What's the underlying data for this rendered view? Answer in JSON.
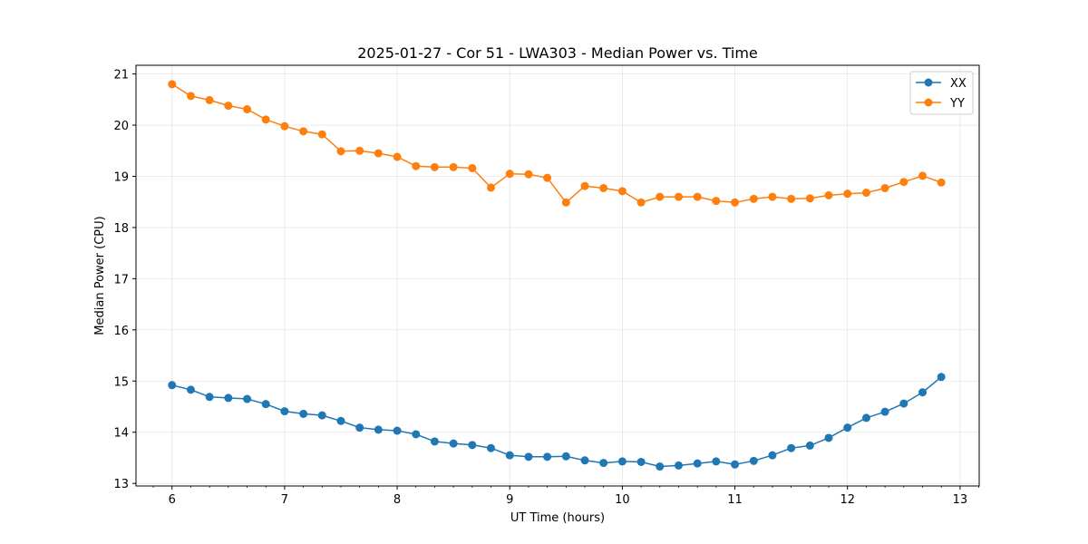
{
  "chart_data": {
    "type": "line",
    "title": "2025-01-27 - Cor 51 - LWA303 - Median Power vs. Time",
    "xlabel": "UT Time (hours)",
    "ylabel": "Median Power (CPU)",
    "xlim": [
      5.68,
      13.17
    ],
    "ylim": [
      12.95,
      21.17
    ],
    "x_ticks": [
      6,
      7,
      8,
      9,
      10,
      11,
      12,
      13
    ],
    "y_ticks": [
      13,
      14,
      15,
      16,
      17,
      18,
      19,
      20,
      21
    ],
    "x_tick_labels": [
      "6",
      "7",
      "8",
      "9",
      "10",
      "11",
      "12",
      "13"
    ],
    "y_tick_labels": [
      "13",
      "14",
      "15",
      "16",
      "17",
      "18",
      "19",
      "20",
      "21"
    ],
    "grid": true,
    "legend_position": "top-right",
    "x": [
      6.0,
      6.167,
      6.333,
      6.5,
      6.667,
      6.833,
      7.0,
      7.167,
      7.333,
      7.5,
      7.667,
      7.833,
      8.0,
      8.167,
      8.333,
      8.5,
      8.667,
      8.833,
      9.0,
      9.167,
      9.333,
      9.5,
      9.667,
      9.833,
      10.0,
      10.167,
      10.333,
      10.5,
      10.667,
      10.833,
      11.0,
      11.167,
      11.333,
      11.5,
      11.667,
      11.833,
      12.0,
      12.167,
      12.333,
      12.5,
      12.667,
      12.833
    ],
    "series": [
      {
        "name": "XX",
        "color": "#1f77b4",
        "values": [
          14.92,
          14.83,
          14.69,
          14.67,
          14.65,
          14.55,
          14.41,
          14.36,
          14.33,
          14.22,
          14.09,
          14.05,
          14.03,
          13.96,
          13.82,
          13.78,
          13.75,
          13.69,
          13.55,
          13.52,
          13.52,
          13.53,
          13.45,
          13.4,
          13.43,
          13.42,
          13.33,
          13.35,
          13.39,
          13.43,
          13.37,
          13.44,
          13.55,
          13.69,
          13.74,
          13.89,
          14.09,
          14.28,
          14.4,
          14.56,
          14.78,
          15.08
        ]
      },
      {
        "name": "YY",
        "color": "#ff7f0e",
        "values": [
          20.8,
          20.57,
          20.49,
          20.38,
          20.31,
          20.11,
          19.98,
          19.88,
          19.82,
          19.49,
          19.5,
          19.45,
          19.38,
          19.2,
          19.18,
          19.18,
          19.16,
          18.78,
          19.05,
          19.04,
          18.97,
          18.49,
          18.81,
          18.77,
          18.71,
          18.49,
          18.6,
          18.6,
          18.6,
          18.52,
          18.49,
          18.56,
          18.6,
          18.56,
          18.57,
          18.63,
          18.66,
          18.68,
          18.77,
          18.89,
          19.01,
          18.88
        ]
      }
    ]
  }
}
